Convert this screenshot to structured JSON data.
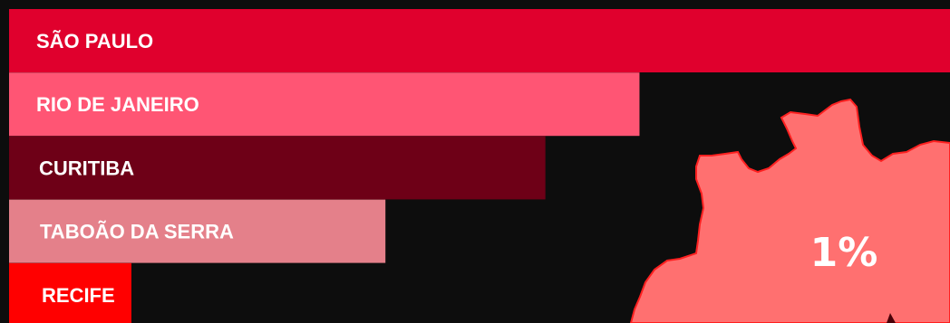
{
  "chart_data": {
    "type": "bar",
    "orientation": "horizontal",
    "categories": [
      "SÃO PAULO",
      "RIO DE JANEIRO",
      "CURITIBA",
      "TABOÃO DA SERRA",
      "RECIFE"
    ],
    "values": [
      100,
      67,
      57,
      40,
      13
    ],
    "colors": [
      "#e0002d",
      "#ff5574",
      "#6e0017",
      "#e4808a",
      "#ff0000"
    ],
    "xlim": [
      0,
      100
    ],
    "grid": false,
    "legend": "none"
  },
  "map": {
    "fill_color": "#ff7070",
    "stroke_color": "#ff2020",
    "percent_label": "1%"
  },
  "background_color": "#0d0d0d"
}
